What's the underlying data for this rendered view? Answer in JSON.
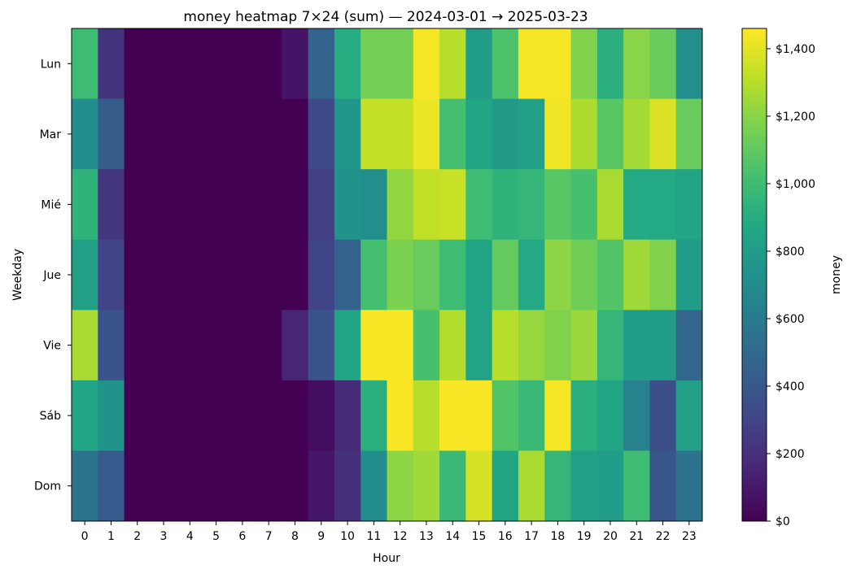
{
  "chart_data": {
    "type": "heatmap",
    "title": "money heatmap 7×24 (sum) — 2024-03-01 → 2025-03-23",
    "xlabel": "Hour",
    "ylabel": "Weekday",
    "x": [
      "0",
      "1",
      "2",
      "3",
      "4",
      "5",
      "6",
      "7",
      "8",
      "9",
      "10",
      "11",
      "12",
      "13",
      "14",
      "15",
      "16",
      "17",
      "18",
      "19",
      "20",
      "21",
      "22",
      "23"
    ],
    "y": [
      "Lun",
      "Mar",
      "Mié",
      "Jue",
      "Vie",
      "Sáb",
      "Dom"
    ],
    "values": [
      [
        1000,
        220,
        0,
        0,
        0,
        0,
        0,
        0,
        80,
        460,
        900,
        1150,
        1150,
        1440,
        1300,
        800,
        1050,
        1440,
        1440,
        1180,
        920,
        1200,
        1120,
        720
      ],
      [
        700,
        420,
        0,
        0,
        0,
        0,
        0,
        0,
        0,
        330,
        760,
        1330,
        1330,
        1420,
        1020,
        860,
        780,
        820,
        1430,
        1280,
        1080,
        1260,
        1380,
        1120
      ],
      [
        940,
        230,
        0,
        0,
        0,
        0,
        0,
        0,
        0,
        270,
        740,
        720,
        1220,
        1320,
        1340,
        1000,
        940,
        960,
        1080,
        1030,
        1270,
        880,
        880,
        860
      ],
      [
        820,
        290,
        0,
        0,
        0,
        0,
        0,
        0,
        0,
        300,
        460,
        1020,
        1170,
        1120,
        1000,
        860,
        1110,
        880,
        1210,
        1140,
        1060,
        1250,
        1180,
        800
      ],
      [
        1270,
        380,
        0,
        0,
        0,
        0,
        0,
        0,
        150,
        380,
        860,
        1450,
        1450,
        1030,
        1290,
        840,
        1300,
        1230,
        1180,
        1240,
        960,
        800,
        800,
        480
      ],
      [
        860,
        740,
        0,
        0,
        0,
        0,
        0,
        0,
        0,
        50,
        180,
        920,
        1450,
        1300,
        1450,
        1450,
        1060,
        980,
        1440,
        920,
        860,
        640,
        350,
        820
      ],
      [
        560,
        410,
        0,
        0,
        0,
        0,
        0,
        0,
        0,
        90,
        200,
        700,
        1210,
        1250,
        980,
        1370,
        860,
        1270,
        960,
        820,
        800,
        1000,
        390,
        560
      ]
    ],
    "zlim": [
      0,
      1460
    ],
    "colormap": "viridis",
    "colorbar": {
      "label": "money",
      "ticks": [
        0,
        200,
        400,
        600,
        800,
        1000,
        1200,
        1400
      ],
      "tick_labels": [
        "$0",
        "$200",
        "$400",
        "$600",
        "$800",
        "$1,000",
        "$1,200",
        "$1,400"
      ]
    },
    "grid": false,
    "legend": "none"
  }
}
